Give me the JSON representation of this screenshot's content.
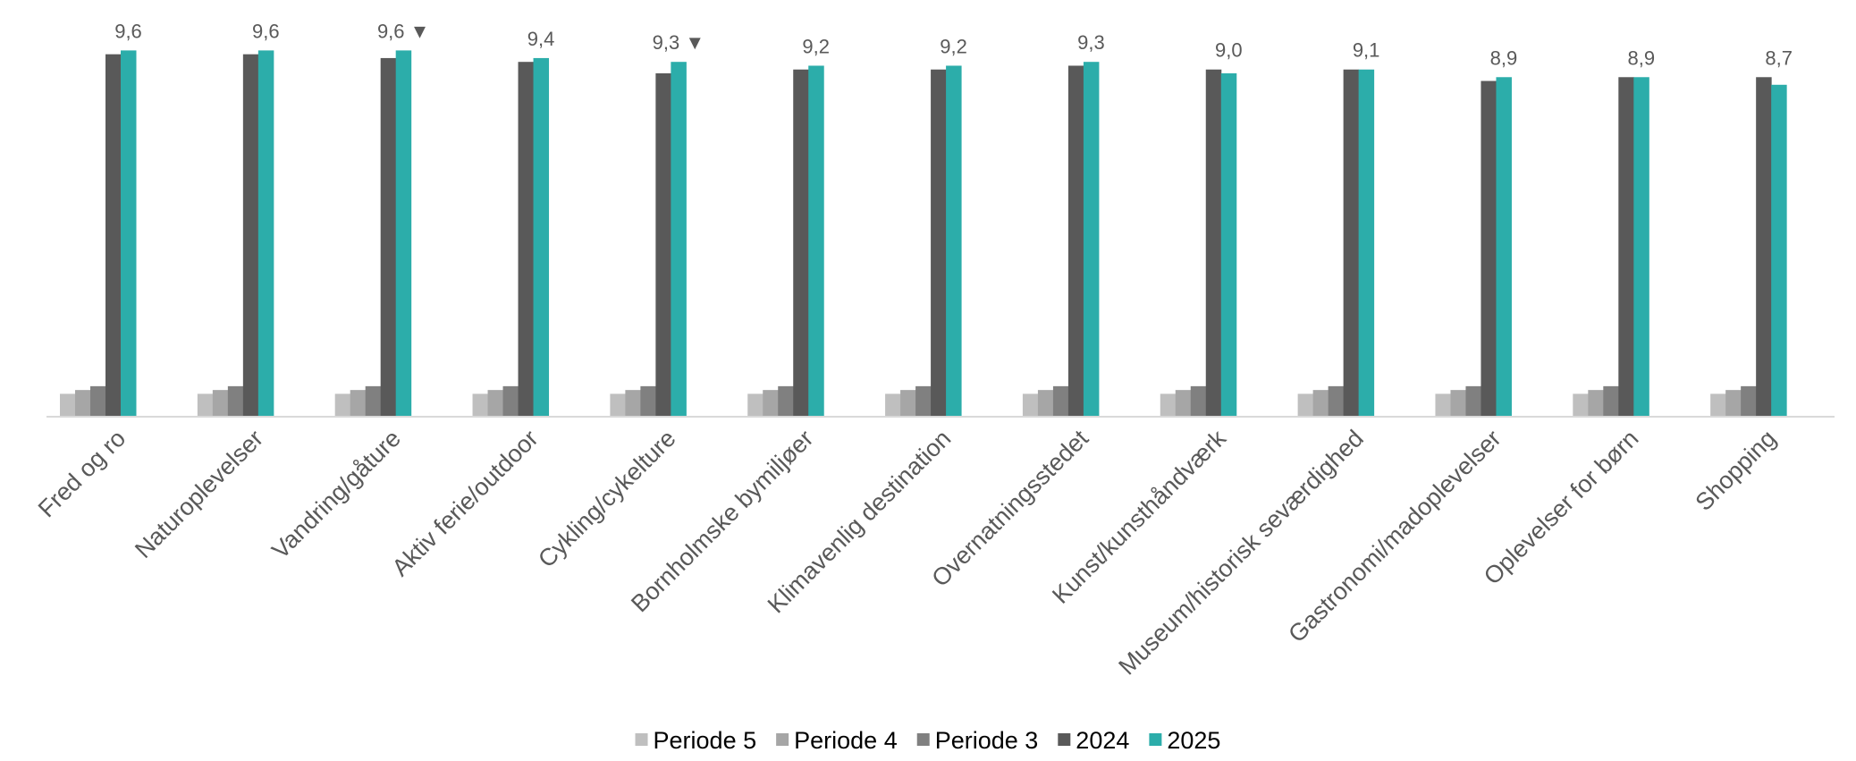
{
  "chart_data": {
    "type": "bar",
    "title": "",
    "xlabel": "",
    "ylabel": "",
    "categories": [
      "Fred og ro",
      "Naturoplevelser",
      "Vandring/gåture",
      "Aktiv ferie/outdoor",
      "Cykling/cykelture",
      "Bornholmske bymiljøer",
      "Klimavenlig destination",
      "Overnatningsstedet",
      "Kunst/kunsthåndværk",
      "Museum/historisk seværdighed",
      "Gastronomi/madoplevelser",
      "Oplevelser for børn",
      "Shopping"
    ],
    "series": [
      {
        "name": "Periode 5",
        "color": "#bfbfbf",
        "values": [
          0.6,
          0.6,
          0.6,
          0.6,
          0.6,
          0.6,
          0.6,
          0.6,
          0.6,
          0.6,
          0.6,
          0.6,
          0.6
        ]
      },
      {
        "name": "Periode 4",
        "color": "#a6a6a6",
        "values": [
          0.7,
          0.7,
          0.7,
          0.7,
          0.7,
          0.7,
          0.7,
          0.7,
          0.7,
          0.7,
          0.7,
          0.7,
          0.7
        ]
      },
      {
        "name": "Periode 3",
        "color": "#808080",
        "values": [
          0.8,
          0.8,
          0.8,
          0.8,
          0.8,
          0.8,
          0.8,
          0.8,
          0.8,
          0.8,
          0.8,
          0.8,
          0.8
        ]
      },
      {
        "name": "2024",
        "color": "#595959",
        "values": [
          9.5,
          9.5,
          9.4,
          9.3,
          9.0,
          9.1,
          9.1,
          9.2,
          9.1,
          9.1,
          8.8,
          8.9,
          8.9
        ]
      },
      {
        "name": "2025",
        "color": "#2cadaa",
        "values": [
          9.6,
          9.6,
          9.6,
          9.4,
          9.3,
          9.2,
          9.2,
          9.3,
          9.0,
          9.1,
          8.9,
          8.9,
          8.7
        ]
      }
    ],
    "data_labels": [
      "9,6",
      "9,6",
      "9,6 ▼",
      "9,4",
      "9,3 ▼",
      "9,2",
      "9,2",
      "9,3",
      "9,0",
      "9,1",
      "8,9",
      "8,9",
      "8,7"
    ],
    "ylim": [
      0,
      10.5
    ],
    "grid": false,
    "legend_position": "bottom"
  }
}
